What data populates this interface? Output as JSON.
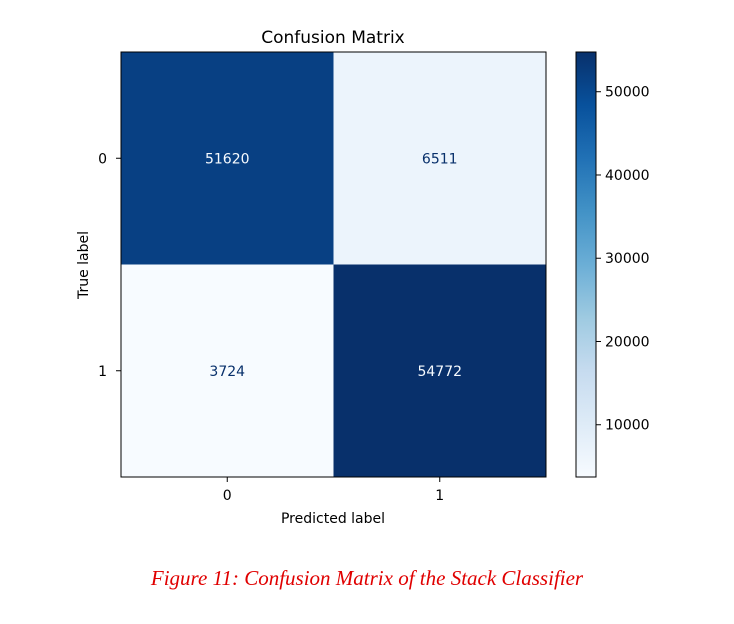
{
  "chart_data": {
    "type": "heatmap",
    "title": "Confusion Matrix",
    "xlabel": "Predicted label",
    "ylabel": "True label",
    "x_categories": [
      "0",
      "1"
    ],
    "y_categories": [
      "0",
      "1"
    ],
    "matrix": [
      [
        51620,
        6511
      ],
      [
        3724,
        54772
      ]
    ],
    "colormap": "Blues",
    "colorbar": {
      "range": [
        3724,
        54772
      ],
      "ticks": [
        10000,
        20000,
        30000,
        40000,
        50000
      ],
      "tick_labels": [
        "10000",
        "20000",
        "30000",
        "40000",
        "50000"
      ]
    },
    "grid": false
  },
  "caption": "Figure 11: Confusion Matrix of the Stack Classifier"
}
